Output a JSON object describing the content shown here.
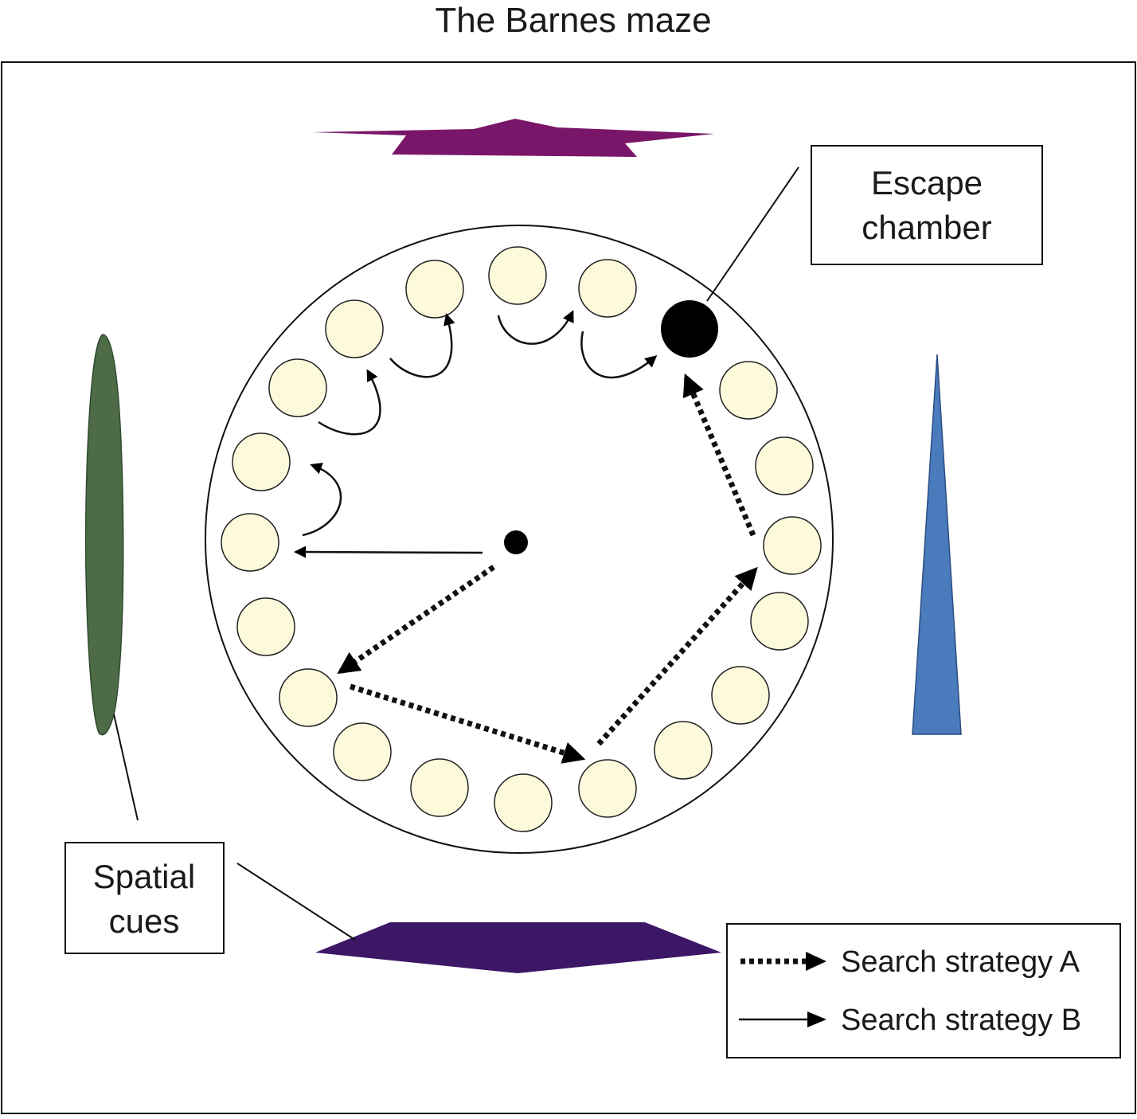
{
  "title": "The Barnes maze",
  "callouts": {
    "escape_line1": "Escape",
    "escape_line2": "chamber",
    "cues_line1": "Spatial",
    "cues_line2": "cues"
  },
  "legend": {
    "strategy_a": "Search strategy A",
    "strategy_b": "Search strategy B"
  },
  "colors": {
    "hole_fill": "#fdfadc",
    "escape_hole": "#000000",
    "cue_top": "#7a1669",
    "cue_bottom": "#3c1766",
    "cue_left": "#4e6b48",
    "cue_right": "#4a7bbd"
  }
}
